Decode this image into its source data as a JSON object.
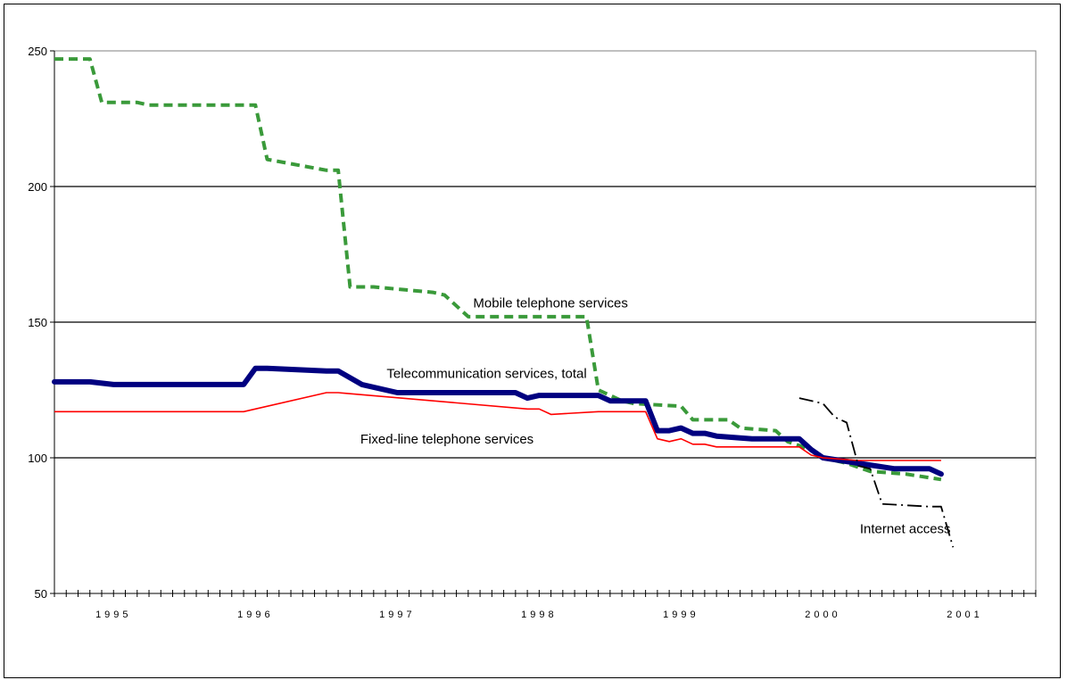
{
  "chart_data": {
    "type": "line",
    "title": "",
    "xlabel": "",
    "ylabel": "",
    "ylim": [
      50,
      250
    ],
    "yticks": [
      50,
      100,
      150,
      200,
      250
    ],
    "xticks": [
      "1995",
      "1996",
      "1997",
      "1998",
      "1999",
      "2000",
      "2001"
    ],
    "grid": true,
    "legend": "none",
    "x_unit": "year (decimal)",
    "series": [
      {
        "name": "Mobile telephone services",
        "color": "#3a9a3a",
        "style": "dashed",
        "x": [
          1994.583,
          1994.833,
          1994.917,
          1995.167,
          1995.25,
          1995.917,
          1996.0,
          1996.083,
          1996.5,
          1996.583,
          1996.667,
          1996.833,
          1997.25,
          1997.333,
          1997.5,
          1998.333,
          1998.417,
          1998.5,
          1998.583,
          1998.667,
          1999.0,
          1999.083,
          1999.333,
          1999.417,
          1999.667,
          1999.75,
          1999.917,
          2000.0,
          2000.167,
          2000.333,
          2000.583,
          2000.833
        ],
        "y": [
          247,
          247,
          231,
          231,
          230,
          230,
          230,
          210,
          206,
          206,
          163,
          163,
          161,
          160,
          152,
          152,
          125,
          123,
          121,
          120,
          119,
          114,
          114,
          111,
          110,
          106,
          103,
          100,
          98,
          95,
          94,
          92
        ]
      },
      {
        "name": "Telecommunication services, total",
        "color": "#000080",
        "style": "thick",
        "x": [
          1994.583,
          1994.833,
          1995.0,
          1995.25,
          1995.917,
          1996.0,
          1996.083,
          1996.5,
          1996.583,
          1996.75,
          1997.0,
          1997.833,
          1997.917,
          1998.0,
          1998.417,
          1998.5,
          1998.75,
          1998.833,
          1998.917,
          1999.0,
          1999.083,
          1999.167,
          1999.25,
          1999.5,
          1999.833,
          1999.917,
          2000.0,
          2000.25,
          2000.5,
          2000.75,
          2000.833
        ],
        "y": [
          128,
          128,
          127,
          127,
          127,
          133,
          133,
          132,
          132,
          127,
          124,
          124,
          122,
          123,
          123,
          121,
          121,
          110,
          110,
          111,
          109,
          109,
          108,
          107,
          107,
          103,
          100,
          98,
          96,
          96,
          94
        ]
      },
      {
        "name": "Fixed-line telephone services",
        "color": "#ff0000",
        "style": "thin",
        "x": [
          1994.583,
          1995.083,
          1995.167,
          1995.833,
          1995.917,
          1996.5,
          1996.583,
          1997.917,
          1998.0,
          1998.083,
          1998.417,
          1998.5,
          1998.75,
          1998.833,
          1998.917,
          1999.0,
          1999.083,
          1999.167,
          1999.25,
          1999.5,
          1999.833,
          1999.917,
          2000.0,
          2000.25,
          2000.833
        ],
        "y": [
          117,
          117,
          117,
          117,
          117,
          124,
          124,
          118,
          118,
          116,
          117,
          117,
          117,
          107,
          106,
          107,
          105,
          105,
          104,
          104,
          104,
          101,
          100,
          99,
          99
        ]
      },
      {
        "name": "Internet access",
        "color": "#000000",
        "style": "dashdot",
        "x": [
          1999.833,
          2000.0,
          2000.083,
          2000.167,
          2000.25,
          2000.333,
          2000.417,
          2000.75,
          2000.833,
          2000.917
        ],
        "y": [
          122,
          120,
          115,
          113,
          97,
          96,
          83,
          82,
          82,
          67
        ]
      }
    ],
    "annotations": [
      {
        "text": "Mobile telephone services",
        "x": 1998.08,
        "y": 155.5
      },
      {
        "text": "Telecommunication services, total",
        "x": 1997.63,
        "y": 129.5
      },
      {
        "text": "Fixed-line telephone services",
        "x": 1997.35,
        "y": 105.3
      },
      {
        "text": "Internet access",
        "x": 2000.58,
        "y": 72.2
      }
    ]
  }
}
